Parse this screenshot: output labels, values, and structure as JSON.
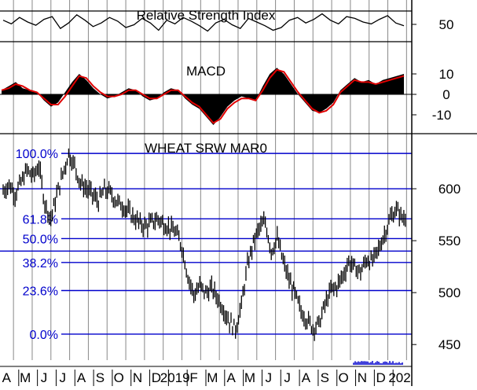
{
  "chart_data": [
    {
      "panel": "rsi",
      "type": "line",
      "title": "Relative Strength Index",
      "yticks": [
        50
      ],
      "ylim": [
        0,
        100
      ],
      "series": [
        {
          "values": [
            66,
            58,
            72,
            62,
            55,
            68,
            74,
            48,
            60,
            78,
            66,
            52,
            60,
            72,
            64,
            50,
            56,
            70,
            60,
            44,
            66,
            58,
            72,
            64,
            54,
            42,
            60,
            68,
            56,
            48,
            70,
            62,
            54,
            44,
            50,
            66,
            72,
            60,
            68,
            80,
            66,
            58,
            74,
            70,
            62,
            58,
            68,
            76,
            60,
            54
          ]
        }
      ]
    },
    {
      "panel": "macd",
      "type": "area",
      "title": "MACD",
      "yticks": [
        10,
        0,
        -10
      ],
      "ylim": [
        -16,
        16
      ],
      "histogram": [
        2,
        4,
        6,
        3,
        2,
        1,
        -3,
        -6,
        -4,
        1,
        6,
        10,
        7,
        3,
        0,
        -2,
        -1,
        1,
        3,
        2,
        -1,
        -3,
        -2,
        1,
        3,
        2,
        -2,
        -5,
        -7,
        -11,
        -15,
        -11,
        -6,
        -3,
        -1,
        -2,
        -3,
        4,
        10,
        13,
        10,
        5,
        0,
        -4,
        -8,
        -9,
        -7,
        -4,
        2,
        5,
        8,
        6,
        7,
        5,
        7,
        8,
        9,
        10
      ],
      "signal": [
        2,
        3,
        5,
        4,
        2,
        1,
        -2,
        -5,
        -5,
        -1,
        4,
        9,
        8,
        4,
        1,
        -1,
        -1,
        0,
        2,
        2,
        0,
        -2,
        -2,
        0,
        2,
        2,
        -1,
        -4,
        -6,
        -10,
        -14,
        -12,
        -7,
        -4,
        -2,
        -2,
        -3,
        2,
        8,
        12,
        11,
        6,
        1,
        -3,
        -7,
        -9,
        -8,
        -5,
        1,
        4,
        7,
        6,
        6,
        5,
        6,
        7,
        8,
        9
      ]
    },
    {
      "panel": "price",
      "type": "line",
      "title": "WHEAT SRW MAR0",
      "yticks": [
        600,
        550,
        500,
        450
      ],
      "ylim": [
        435,
        650
      ],
      "fibonacci": [
        {
          "label": "100.0%",
          "value": 634
        },
        {
          "label": "61.8%",
          "value": 571
        },
        {
          "label": "50.0%",
          "value": 552
        },
        {
          "label": "38.2%",
          "value": 529
        },
        {
          "label": "23.6%",
          "value": 502
        },
        {
          "label": "0.0%",
          "value": 460
        }
      ],
      "extra_levels": [
        600,
        540
      ],
      "series": [
        {
          "values": [
            598,
            604,
            595,
            606,
            618,
            612,
            622,
            586,
            571,
            594,
            614,
            634,
            622,
            605,
            600,
            594,
            588,
            599,
            596,
            588,
            584,
            578,
            572,
            566,
            564,
            568,
            571,
            566,
            562,
            558,
            544,
            516,
            498,
            506,
            500,
            504,
            495,
            484,
            472,
            465,
            488,
            526,
            548,
            562,
            568,
            540,
            552,
            530,
            512,
            498,
            482,
            474,
            466,
            470,
            488,
            502,
            506,
            516,
            530,
            524,
            520,
            532,
            530,
            542,
            556,
            572,
            580,
            572
          ]
        }
      ]
    }
  ],
  "x_axis": {
    "months": [
      "A",
      "M",
      "J",
      "J",
      "A",
      "S",
      "O",
      "N",
      "D",
      "2019",
      "F",
      "M",
      "A",
      "M",
      "J",
      "J",
      "A",
      "S",
      "O",
      "N",
      "D",
      "202"
    ]
  },
  "colors": {
    "grid": "#888888",
    "fib_line": "#0000cc",
    "price_bar": "#000000",
    "macd_fill": "#000000",
    "macd_signal": "#e00000",
    "volume": "#0000cc"
  }
}
